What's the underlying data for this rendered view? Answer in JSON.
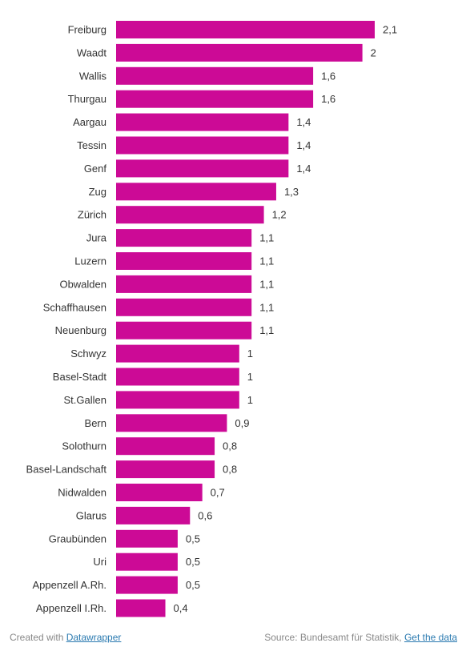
{
  "chart_data": {
    "type": "bar",
    "orientation": "horizontal",
    "categories": [
      "Freiburg",
      "Waadt",
      "Wallis",
      "Thurgau",
      "Aargau",
      "Tessin",
      "Genf",
      "Zug",
      "Zürich",
      "Jura",
      "Luzern",
      "Obwalden",
      "Schaffhausen",
      "Neuenburg",
      "Schwyz",
      "Basel-Stadt",
      "St.Gallen",
      "Bern",
      "Solothurn",
      "Basel-Landschaft",
      "Nidwalden",
      "Glarus",
      "Graubünden",
      "Uri",
      "Appenzell A.Rh.",
      "Appenzell I.Rh."
    ],
    "values": [
      2.1,
      2,
      1.6,
      1.6,
      1.4,
      1.4,
      1.4,
      1.3,
      1.2,
      1.1,
      1.1,
      1.1,
      1.1,
      1.1,
      1,
      1,
      1,
      0.9,
      0.8,
      0.8,
      0.7,
      0.6,
      0.5,
      0.5,
      0.5,
      0.4
    ],
    "value_labels": [
      "2,1",
      "2",
      "1,6",
      "1,6",
      "1,4",
      "1,4",
      "1,4",
      "1,3",
      "1,2",
      "1,1",
      "1,1",
      "1,1",
      "1,1",
      "1,1",
      "1",
      "1",
      "1",
      "0,9",
      "0,8",
      "0,8",
      "0,7",
      "0,6",
      "0,5",
      "0,5",
      "0,5",
      "0,4"
    ],
    "bar_color": "#cc0a96",
    "xlim": [
      0,
      2.1
    ],
    "grid": false,
    "title": "",
    "xlabel": "",
    "ylabel": ""
  },
  "footer": {
    "created_prefix": "Created with ",
    "created_link": "Datawrapper",
    "source_prefix": "Source: Bundesamt für Statistik, ",
    "get_data_link": "Get the data"
  }
}
